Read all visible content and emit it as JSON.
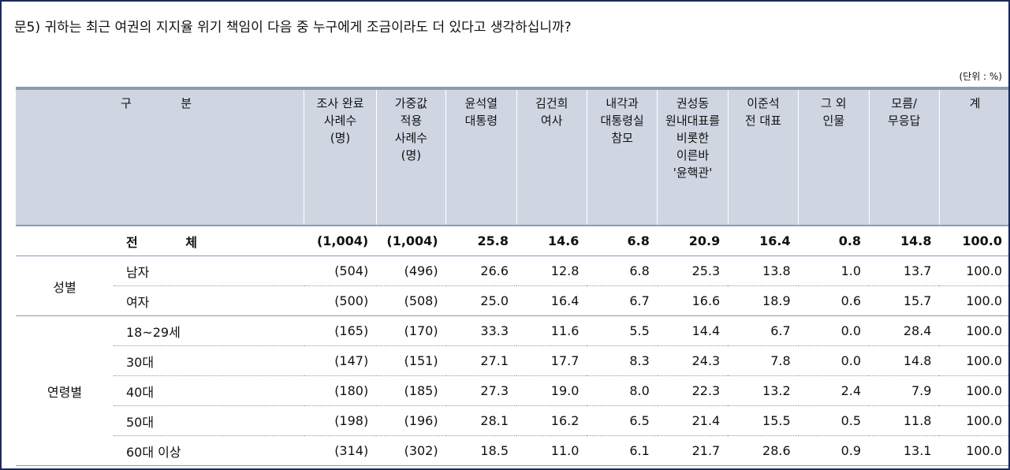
{
  "question": "문5)  귀하는 최근 여권의 지지율 위기 책임이 다음 중 누구에게 조금이라도 더 있다고 생각하십니까?",
  "unit": "(단위 : %)",
  "header": {
    "gubun_a": "구",
    "gubun_b": "분",
    "columns": [
      "조사 완료\n사례수\n(명)",
      "가중값\n적용\n사례수\n(명)",
      "윤석열\n대통령",
      "김건희\n여사",
      "내각과\n대통령실\n참모",
      "권성동\n원내대표를\n비롯한\n이른바\n'윤핵관'",
      "이준석\n전 대표",
      "그 외\n인물",
      "모름/\n무응답",
      "계"
    ]
  },
  "total": {
    "label_a": "전",
    "label_b": "체",
    "values": [
      "(1,004)",
      "(1,004)",
      "25.8",
      "14.6",
      "6.8",
      "20.9",
      "16.4",
      "0.8",
      "14.8",
      "100.0"
    ]
  },
  "groups": [
    {
      "label": "성별",
      "rows": [
        {
          "label": "남자",
          "values": [
            "(504)",
            "(496)",
            "26.6",
            "12.8",
            "6.8",
            "25.3",
            "13.8",
            "1.0",
            "13.7",
            "100.0"
          ]
        },
        {
          "label": "여자",
          "values": [
            "(500)",
            "(508)",
            "25.0",
            "16.4",
            "6.7",
            "16.6",
            "18.9",
            "0.6",
            "15.7",
            "100.0"
          ]
        }
      ]
    },
    {
      "label": "연령별",
      "rows": [
        {
          "label": "18~29세",
          "values": [
            "(165)",
            "(170)",
            "33.3",
            "11.6",
            "5.5",
            "14.4",
            "6.7",
            "0.0",
            "28.4",
            "100.0"
          ]
        },
        {
          "label": "30대",
          "values": [
            "(147)",
            "(151)",
            "27.1",
            "17.7",
            "8.3",
            "24.3",
            "7.8",
            "0.0",
            "14.8",
            "100.0"
          ]
        },
        {
          "label": "40대",
          "values": [
            "(180)",
            "(185)",
            "27.3",
            "19.0",
            "8.0",
            "22.3",
            "13.2",
            "2.4",
            "7.9",
            "100.0"
          ]
        },
        {
          "label": "50대",
          "values": [
            "(198)",
            "(196)",
            "28.1",
            "16.2",
            "6.5",
            "21.4",
            "15.5",
            "0.5",
            "11.8",
            "100.0"
          ]
        },
        {
          "label": "60대 이상",
          "values": [
            "(314)",
            "(302)",
            "18.5",
            "11.0",
            "6.1",
            "21.7",
            "28.6",
            "0.9",
            "13.1",
            "100.0"
          ]
        }
      ]
    }
  ]
}
